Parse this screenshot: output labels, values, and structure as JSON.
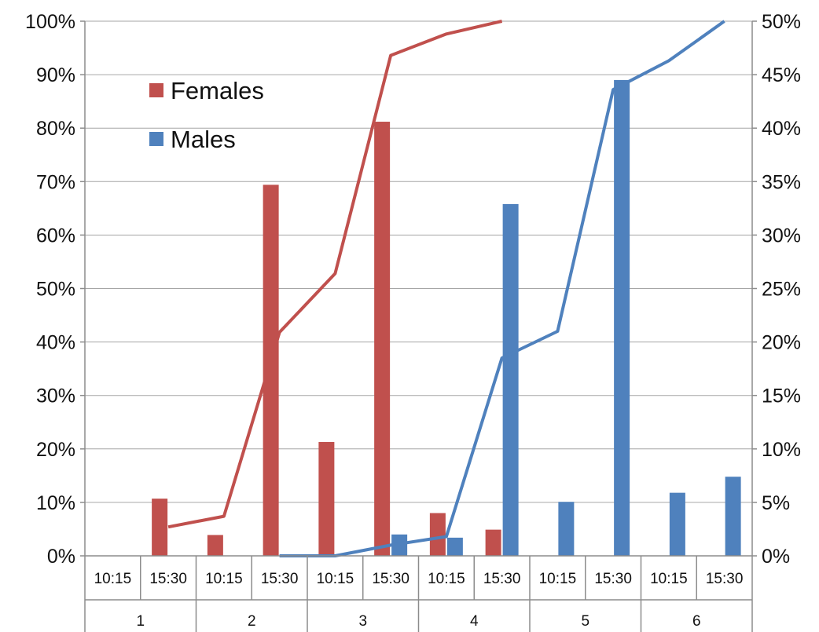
{
  "chart_data": {
    "type": "bar",
    "groups": [
      "1",
      "2",
      "3",
      "4",
      "5",
      "6"
    ],
    "categories": [
      "10:15",
      "15:30",
      "10:15",
      "15:30",
      "10:15",
      "15:30",
      "10:15",
      "15:30",
      "10:15",
      "15:30",
      "10:15",
      "15:30"
    ],
    "series": [
      {
        "name": "Females",
        "type": "bar",
        "axis": "left",
        "color": "#c0504d",
        "values": [
          0,
          10.7,
          3.9,
          69.4,
          21.3,
          81.2,
          8.0,
          4.9,
          0,
          0,
          0,
          0
        ]
      },
      {
        "name": "Males",
        "type": "bar",
        "axis": "left",
        "color": "#4f81bd",
        "values": [
          0,
          0,
          0,
          0,
          0,
          4.0,
          3.4,
          65.8,
          10.1,
          89.0,
          11.8,
          14.8
        ]
      },
      {
        "type": "line",
        "axis": "right",
        "color": "#c0504d",
        "values": [
          null,
          2.7,
          3.7,
          20.9,
          26.4,
          46.8,
          48.8,
          50.0,
          null,
          null,
          null,
          null
        ]
      },
      {
        "type": "line",
        "axis": "right",
        "color": "#4f81bd",
        "values": [
          null,
          null,
          null,
          0,
          0,
          1.0,
          1.8,
          18.5,
          21.0,
          43.6,
          46.3,
          50.0
        ]
      }
    ],
    "y_left": {
      "min": 0,
      "max": 100,
      "step": 10,
      "ticks": [
        "0%",
        "10%",
        "20%",
        "30%",
        "40%",
        "50%",
        "60%",
        "70%",
        "80%",
        "90%",
        "100%"
      ]
    },
    "y_right": {
      "min": 0,
      "max": 50,
      "step": 5,
      "ticks": [
        "0%",
        "5%",
        "10%",
        "15%",
        "20%",
        "25%",
        "30%",
        "35%",
        "40%",
        "45%",
        "50%"
      ]
    },
    "grid": true,
    "legend": {
      "position": "top-left",
      "entries": [
        "Females",
        "Males"
      ]
    }
  }
}
